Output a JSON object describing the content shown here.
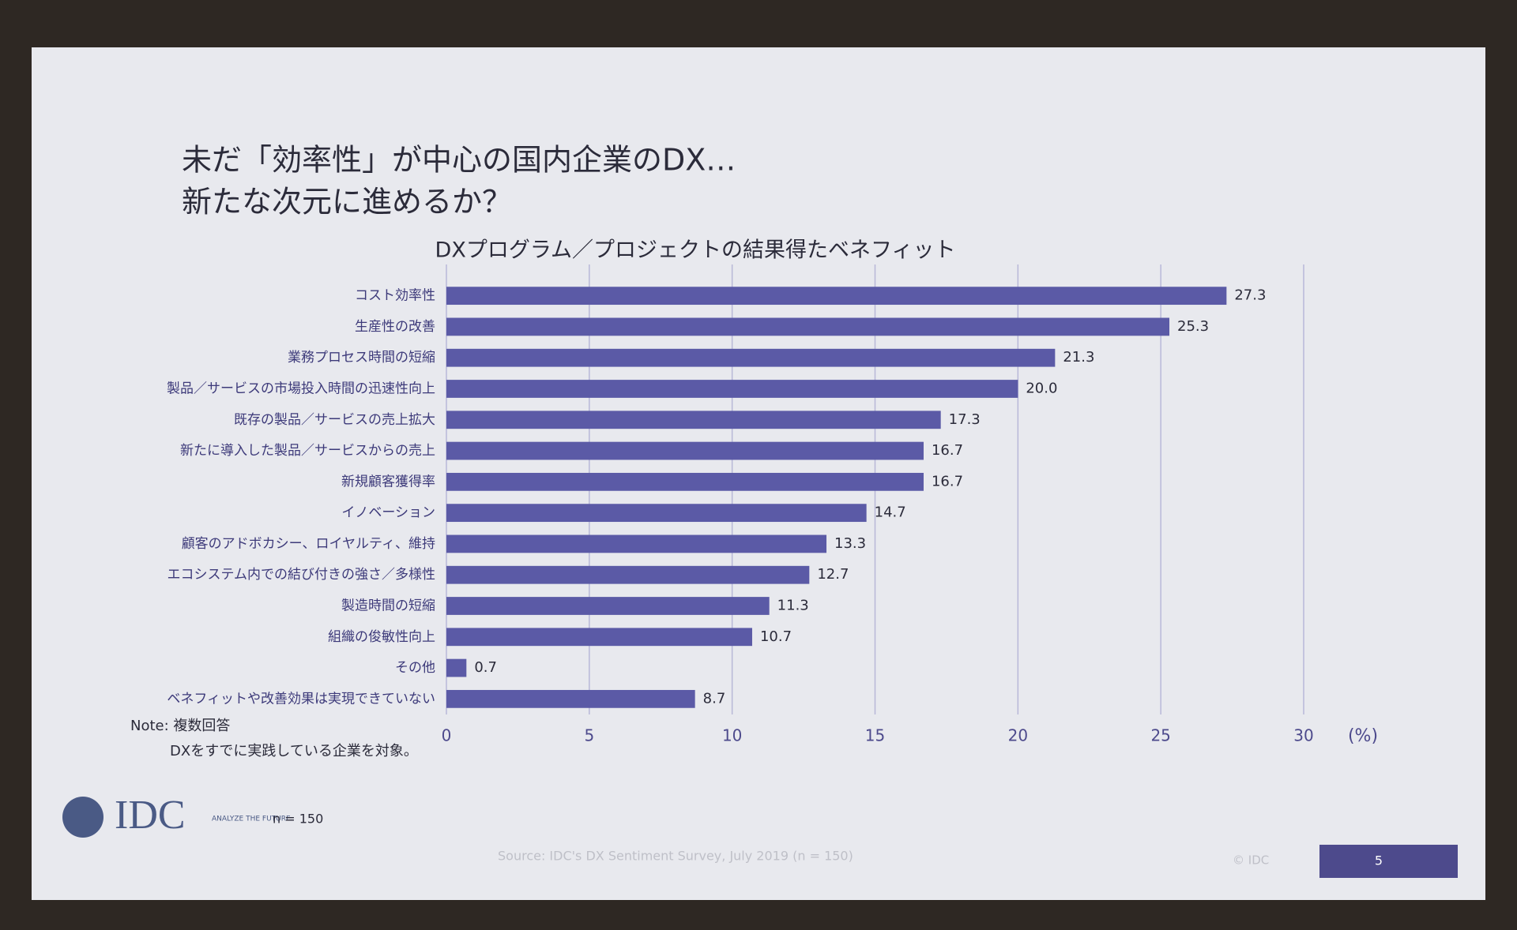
{
  "slide_title": [
    "未だ「効率性」が中心の国内企業のDX…",
    "新たな次元に進めるか？"
  ],
  "chart_data": {
    "type": "bar",
    "orientation": "horizontal",
    "title": "DXプログラム／プロジェクトの結果得たベネフィット",
    "categories": [
      "コスト効率性",
      "生産性の改善",
      "業務プロセス時間の短縮",
      "製品／サービスの市場投入時間の迅速性向上",
      "既存の製品／サービスの売上拡大",
      "新たに導入した製品／サービスからの売上",
      "新規顧客獲得率",
      "イノベーション",
      "顧客のアドボカシー、ロイヤルティ、維持",
      "エコシステム内での結び付きの強さ／多様性",
      "製造時間の短縮",
      "組織の俊敏性向上",
      "その他",
      "ベネフィットや改善効果は実現できていない"
    ],
    "values": [
      27.3,
      25.3,
      21.3,
      20.0,
      17.3,
      16.7,
      16.7,
      14.7,
      13.3,
      12.7,
      11.3,
      10.7,
      0.7,
      8.7
    ],
    "value_labels": [
      "27.3",
      "25.3",
      "21.3",
      "20.0",
      "17.3",
      "16.7",
      "16.7",
      "14.7",
      "13.3",
      "12.7",
      "11.3",
      "10.7",
      "0.7",
      "8.7"
    ],
    "color": "#5b5aa6",
    "xlim": [
      0,
      30
    ],
    "xticks": [
      0,
      5,
      10,
      15,
      20,
      25,
      30
    ],
    "x_unit": "(%)",
    "grid": true
  },
  "notes": [
    "Note: 複数回答",
    "DXをすでに実践している企業を対象。"
  ],
  "logo": {
    "name": "IDC",
    "tagline": "ANALYZE THE FUTURE"
  },
  "sample": "n = 150",
  "source": "Source: IDC's DX Sentiment Survey, July 2019 (n = 150)",
  "copyright": "© IDC",
  "page_number": "5"
}
